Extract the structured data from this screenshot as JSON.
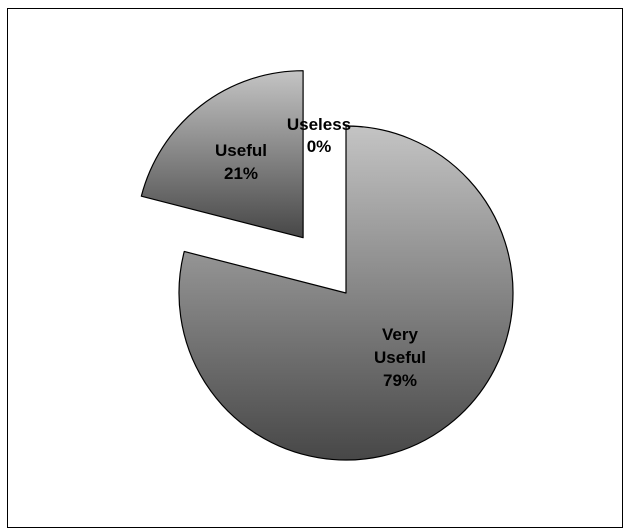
{
  "chart_data": {
    "type": "pie",
    "exploded": true,
    "title": "",
    "categories": [
      "Useless",
      "Very Useful",
      "Useful"
    ],
    "values": [
      0,
      79,
      21
    ],
    "labels": [
      {
        "lines": [
          "Useless",
          "0%"
        ]
      },
      {
        "lines": [
          "Very",
          "Useful",
          "79%"
        ]
      },
      {
        "lines": [
          "Useful",
          "21%"
        ]
      }
    ],
    "fill": {
      "top": "#c4c4c4",
      "bottom": "#474747"
    },
    "stroke": "#000000",
    "legend": "none"
  }
}
